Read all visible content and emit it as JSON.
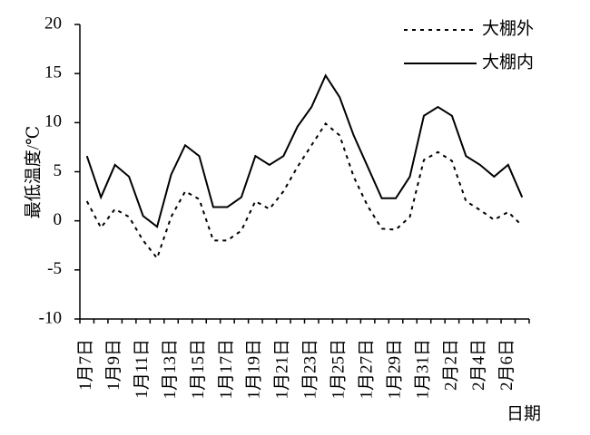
{
  "chart_data": {
    "type": "line",
    "y_label": "最低温度/℃",
    "x_label": "日期",
    "categories": [
      "1月7日",
      null,
      "1月9日",
      null,
      "1月11日",
      null,
      "1月13日",
      null,
      "1月15日",
      null,
      "1月17日",
      null,
      "1月19日",
      null,
      "1月21日",
      null,
      "1月23日",
      null,
      "1月25日",
      null,
      "1月27日",
      null,
      "1月29日",
      null,
      "1月31日",
      null,
      "2月2日",
      null,
      "2月4日",
      null,
      "2月6日",
      null
    ],
    "series": [
      {
        "name": "大棚外",
        "color": "#000000",
        "dash": true,
        "values": [
          2.0,
          -0.7,
          1.2,
          0.4,
          -2.0,
          -3.8,
          0.4,
          3.0,
          2.2,
          -2.0,
          -2.0,
          -1.0,
          2.0,
          1.2,
          3.0,
          5.5,
          7.7,
          9.9,
          8.7,
          4.5,
          1.5,
          -0.8,
          -0.9,
          0.4,
          6.2,
          7.0,
          6.1,
          2.0,
          1.1,
          0.1,
          0.9,
          -0.5
        ]
      },
      {
        "name": "大棚内",
        "color": "#000000",
        "dash": false,
        "values": [
          6.6,
          2.4,
          5.7,
          4.5,
          0.5,
          -0.6,
          4.7,
          7.7,
          6.6,
          1.4,
          1.4,
          2.4,
          6.6,
          5.7,
          6.6,
          9.6,
          11.6,
          14.8,
          12.6,
          8.7,
          5.5,
          2.3,
          2.3,
          4.5,
          10.7,
          11.6,
          10.7,
          6.6,
          5.7,
          4.5,
          5.7,
          2.4
        ]
      }
    ],
    "ylim": [
      -10,
      20
    ],
    "yticks": [
      -10,
      -5,
      0,
      5,
      10,
      15,
      20
    ],
    "grid": false
  }
}
